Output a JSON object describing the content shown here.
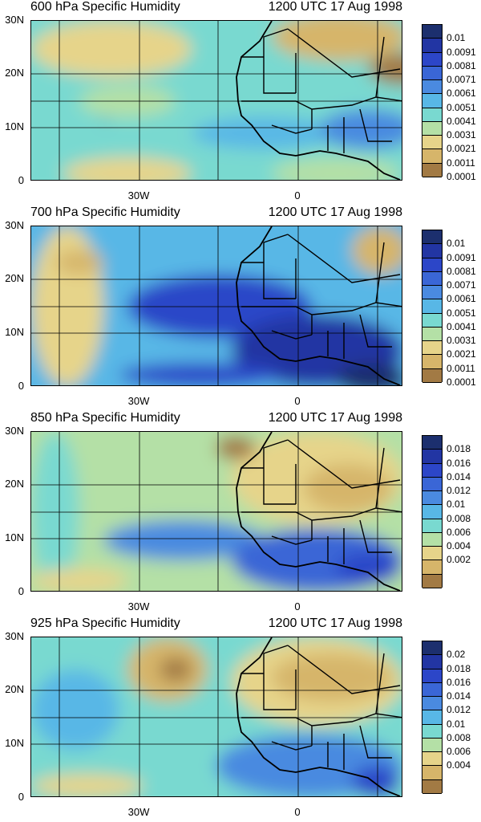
{
  "panels": [
    {
      "title": "600 hPa Specific Humidity",
      "time": "1200 UTC 17 Aug 1998",
      "lat_labels": [
        "30N",
        "20N",
        "10N",
        "0"
      ],
      "lon_labels": [
        "30W",
        "0"
      ],
      "colorbar_labels": [
        "0.01",
        "0.0091",
        "0.0081",
        "0.0071",
        "0.0061",
        "0.0051",
        "0.0041",
        "0.0031",
        "0.0021",
        "0.0011",
        "0.0001"
      ],
      "palette": [
        "#1c2f6e",
        "#2235a3",
        "#2c46c8",
        "#3a66d6",
        "#4a8ae0",
        "#58b7e6",
        "#79d9d0",
        "#b4e0a6",
        "#e6d48a",
        "#d6b56a",
        "#a27a44"
      ]
    },
    {
      "title": "700 hPa Specific Humidity",
      "time": "1200 UTC 17 Aug 1998",
      "lat_labels": [
        "30N",
        "20N",
        "10N",
        "0"
      ],
      "lon_labels": [
        "30W",
        "0"
      ],
      "colorbar_labels": [
        "0.01",
        "0.0091",
        "0.0081",
        "0.0071",
        "0.0061",
        "0.0051",
        "0.0041",
        "0.0031",
        "0.0021",
        "0.0011",
        "0.0001"
      ],
      "palette": [
        "#1c2f6e",
        "#2235a3",
        "#2c46c8",
        "#3a66d6",
        "#4a8ae0",
        "#58b7e6",
        "#79d9d0",
        "#b4e0a6",
        "#e6d48a",
        "#d6b56a",
        "#a27a44"
      ]
    },
    {
      "title": "850 hPa Specific Humidity",
      "time": "1200 UTC 17 Aug 1998",
      "lat_labels": [
        "30N",
        "20N",
        "10N",
        "0"
      ],
      "lon_labels": [
        "30W",
        "0"
      ],
      "colorbar_labels": [
        "0.018",
        "0.016",
        "0.014",
        "0.012",
        "0.01",
        "0.008",
        "0.006",
        "0.004",
        "0.002"
      ],
      "palette": [
        "#1c2f6e",
        "#2235a3",
        "#2c46c8",
        "#3a66d6",
        "#4a8ae0",
        "#58b7e6",
        "#79d9d0",
        "#b4e0a6",
        "#e6d48a",
        "#d6b56a",
        "#a27a44"
      ]
    },
    {
      "title": "925 hPa Specific Humidity",
      "time": "1200 UTC 17 Aug 1998",
      "lat_labels": [
        "30N",
        "20N",
        "10N",
        "0"
      ],
      "lon_labels": [
        "30W",
        "0"
      ],
      "colorbar_labels": [
        "0.02",
        "0.018",
        "0.016",
        "0.014",
        "0.012",
        "0.01",
        "0.008",
        "0.006",
        "0.004"
      ],
      "palette": [
        "#1c2f6e",
        "#2235a3",
        "#2c46c8",
        "#3a66d6",
        "#4a8ae0",
        "#58b7e6",
        "#79d9d0",
        "#b4e0a6",
        "#e6d48a",
        "#d6b56a",
        "#a27a44"
      ]
    }
  ]
}
